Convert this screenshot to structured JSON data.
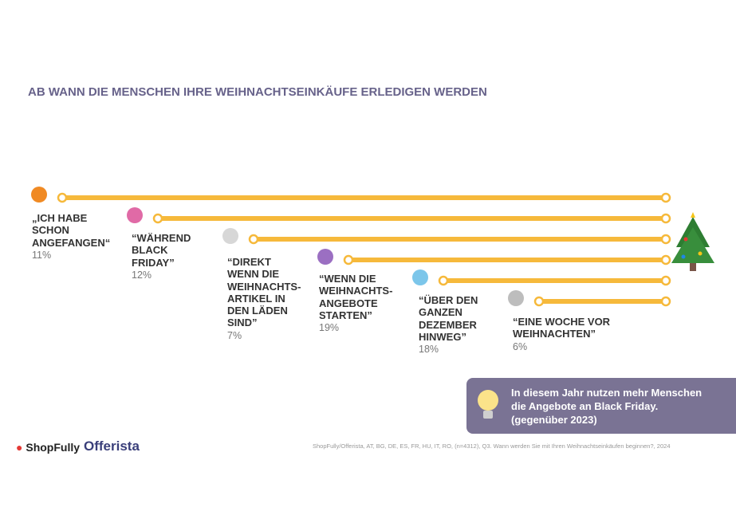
{
  "title": "AB WANN DIE MENSCHEN IHRE WEIHNACHTSEINKÄUFE ERLEDIGEN WERDEN",
  "items": [
    {
      "label": [
        "„ICH HABE",
        "SCHON",
        "ANGEFANGEN“"
      ],
      "share": "11%"
    },
    {
      "label": [
        "“WÄHREND",
        "BLACK",
        "FRIDAY”"
      ],
      "share": "12%"
    },
    {
      "label": [
        "“DIREKT",
        "WENN DIE",
        "WEIHNACHTS-",
        "ARTIKEL IN",
        "DEN LÄDEN",
        "SIND”"
      ],
      "share": "7%"
    },
    {
      "label": [
        "“WENN DIE",
        "WEIHNACHTS-",
        "ANGEBOTE",
        "STARTEN”"
      ],
      "share": "19%"
    },
    {
      "label": [
        "“ÜBER DEN",
        "GANZEN",
        "DEZEMBER",
        "HINWEG”"
      ],
      "share": "18%"
    },
    {
      "label": [
        "“EINE WOCHE VOR",
        "WEIHNACHTEN”"
      ],
      "share": "6%"
    }
  ],
  "callout": [
    "In diesem Jahr nutzen mehr Menschen",
    "die Angebote an Black Friday.",
    "(gegenüber 2023)"
  ],
  "logos": [
    "ShopFully",
    "Offerista"
  ],
  "source": "ShopFully/Offerista, AT, BG, DE, ES, FR, HU, IT, RO, (n=4312), Q3. Wann werden Sie mit Ihren Weihnachtseinkäufen beginnen?, 2024"
}
